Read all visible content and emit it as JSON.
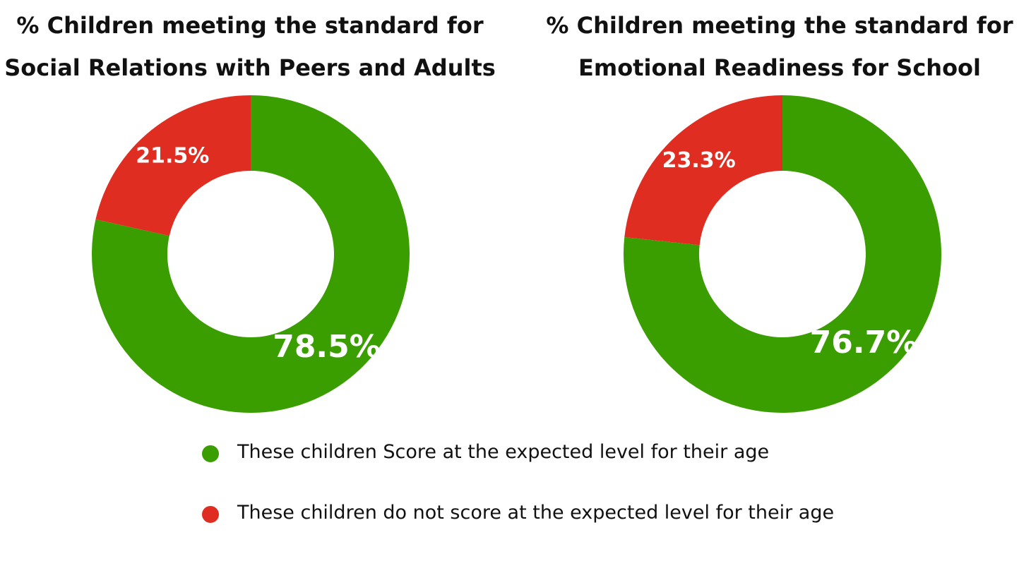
{
  "colors": {
    "meets": "#3a9e00",
    "not_meets": "#e02d22",
    "label": "#ffffff"
  },
  "chart_data": [
    {
      "type": "pie",
      "title": [
        "% Children meeting the standard for",
        "Social Relations with Peers and Adults"
      ],
      "slices": [
        {
          "label": "These children Score at the expected level for their age",
          "value": 78.5,
          "display": "78.5%"
        },
        {
          "label": "These children do not score at the expected level for their age",
          "value": 21.5,
          "display": "21.5%"
        }
      ],
      "style": "donut"
    },
    {
      "type": "pie",
      "title": [
        "% Children meeting the standard for",
        "Emotional Readiness for School"
      ],
      "slices": [
        {
          "label": "These children Score at the expected level for their age",
          "value": 76.7,
          "display": "76.7%"
        },
        {
          "label": "These children do not score at the expected level for their age",
          "value": 23.3,
          "display": "23.3%"
        }
      ],
      "style": "donut"
    }
  ],
  "legend": {
    "items": [
      {
        "text": "These children Score at the expected level for their age",
        "color": "#3a9e00"
      },
      {
        "text": "These children do not score at the expected level for their age",
        "color": "#e02d22"
      }
    ]
  }
}
